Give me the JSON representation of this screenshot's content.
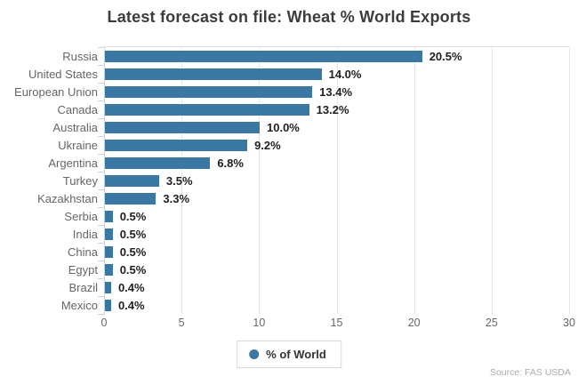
{
  "chart_data": {
    "type": "bar",
    "orientation": "horizontal",
    "title": "Latest forecast on file: Wheat % World Exports",
    "categories": [
      "Russia",
      "United States",
      "European Union",
      "Canada",
      "Australia",
      "Ukraine",
      "Argentina",
      "Turkey",
      "Kazakhstan",
      "Serbia",
      "India",
      "China",
      "Egypt",
      "Brazil",
      "Mexico"
    ],
    "values": [
      20.5,
      14.0,
      13.4,
      13.2,
      10.0,
      9.2,
      6.8,
      3.5,
      3.3,
      0.5,
      0.5,
      0.5,
      0.5,
      0.4,
      0.4
    ],
    "value_labels": [
      "20.5%",
      "14.0%",
      "13.4%",
      "13.2%",
      "10.0%",
      "9.2%",
      "6.8%",
      "3.5%",
      "3.3%",
      "0.5%",
      "0.5%",
      "0.5%",
      "0.5%",
      "0.4%",
      "0.4%"
    ],
    "xlim": [
      0,
      30
    ],
    "x_ticks": [
      0,
      5,
      10,
      15,
      20,
      25,
      30
    ],
    "x_tick_labels": [
      "0",
      "5",
      "10",
      "15",
      "20",
      "25",
      "30"
    ],
    "grid": "vertical",
    "legend": "% of World",
    "legend_position": "bottom-center",
    "source": "Source: FAS USDA",
    "bar_color": "#3878a2",
    "title_color": "#3c3c3c",
    "label_color": "#666666",
    "value_label_color": "#1f1f1f",
    "gridline_color": "#e6e6e6",
    "axis_color": "#ccd4da",
    "source_color": "#ababab"
  }
}
